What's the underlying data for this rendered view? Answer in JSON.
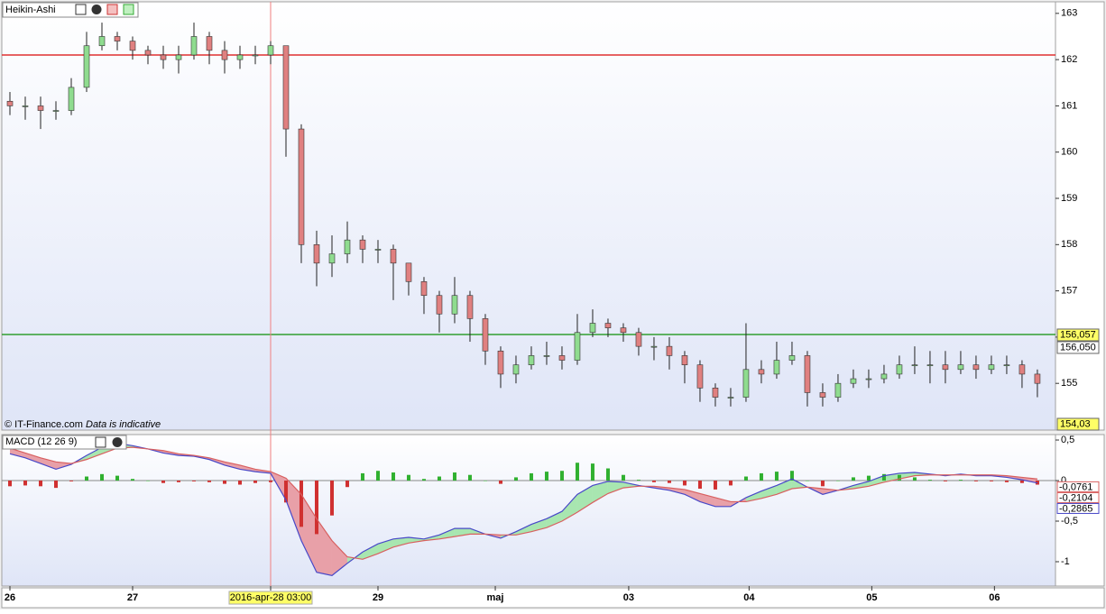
{
  "chart_data": [
    {
      "type": "candlestick",
      "title": "Heikin-Ashi",
      "copyright": "© IT-Finance.com",
      "note": "Data is indicative",
      "up_color": "#8fdc8f",
      "down_color": "#e08080",
      "open": [
        161.1,
        161.0,
        161.0,
        160.9,
        160.9,
        161.4,
        162.3,
        162.5,
        162.4,
        162.2,
        162.1,
        162.0,
        162.1,
        162.5,
        162.2,
        162.0,
        162.1,
        162.1,
        162.3,
        160.5,
        158.0,
        157.6,
        157.8,
        158.1,
        157.9,
        157.9,
        157.6,
        157.2,
        156.9,
        156.5,
        156.9,
        156.4,
        155.7,
        155.2,
        155.4,
        155.6,
        155.6,
        155.5,
        156.1,
        156.3,
        156.2,
        156.1,
        155.8,
        155.8,
        155.6,
        155.4,
        154.9,
        154.7,
        154.7,
        155.3,
        155.2,
        155.5,
        155.6,
        154.8,
        154.7,
        155.0,
        155.1,
        155.1,
        155.2,
        155.4,
        155.4,
        155.4,
        155.3,
        155.4,
        155.3,
        155.4,
        155.4,
        155.2
      ],
      "high": [
        161.3,
        161.2,
        161.2,
        161.1,
        161.6,
        162.6,
        162.8,
        162.6,
        162.5,
        162.3,
        162.3,
        162.3,
        162.8,
        162.6,
        162.4,
        162.3,
        162.3,
        162.4,
        162.3,
        160.6,
        158.3,
        158.2,
        158.5,
        158.2,
        158.1,
        158.0,
        157.6,
        157.3,
        157.0,
        157.3,
        157.0,
        156.5,
        155.8,
        155.6,
        155.8,
        155.9,
        155.8,
        156.5,
        156.6,
        156.4,
        156.3,
        156.2,
        156.0,
        156.0,
        155.7,
        155.5,
        155.0,
        154.9,
        156.3,
        155.5,
        155.9,
        155.9,
        155.7,
        155.0,
        155.2,
        155.3,
        155.3,
        155.4,
        155.6,
        155.8,
        155.7,
        155.7,
        155.7,
        155.6,
        155.6,
        155.6,
        155.5,
        155.3
      ],
      "low": [
        160.8,
        160.7,
        160.5,
        160.7,
        160.8,
        161.3,
        162.2,
        162.2,
        162.0,
        161.9,
        161.8,
        161.7,
        162.0,
        161.9,
        161.7,
        161.8,
        161.9,
        161.9,
        159.9,
        157.6,
        157.1,
        157.3,
        157.6,
        157.6,
        157.6,
        156.8,
        156.9,
        156.5,
        156.1,
        156.3,
        155.9,
        155.4,
        154.9,
        155.0,
        155.3,
        155.4,
        155.3,
        155.4,
        156.0,
        156.0,
        155.9,
        155.6,
        155.5,
        155.3,
        155.0,
        154.6,
        154.5,
        154.5,
        154.6,
        155.0,
        155.1,
        155.4,
        154.5,
        154.5,
        154.6,
        154.9,
        154.9,
        155.0,
        155.1,
        155.2,
        155.0,
        155.0,
        155.2,
        155.1,
        155.2,
        155.2,
        154.9,
        154.7
      ],
      "close": [
        161.0,
        161.0,
        160.9,
        160.9,
        161.4,
        162.3,
        162.5,
        162.4,
        162.2,
        162.1,
        162.0,
        162.1,
        162.5,
        162.2,
        162.0,
        162.1,
        162.1,
        162.3,
        160.5,
        158.0,
        157.6,
        157.8,
        158.1,
        157.9,
        157.9,
        157.6,
        157.2,
        156.9,
        156.5,
        156.9,
        156.4,
        155.7,
        155.2,
        155.4,
        155.6,
        155.6,
        155.5,
        156.1,
        156.3,
        156.2,
        156.1,
        155.8,
        155.8,
        155.6,
        155.4,
        154.9,
        154.7,
        154.7,
        155.3,
        155.2,
        155.5,
        155.6,
        154.8,
        154.7,
        155.0,
        155.1,
        155.1,
        155.2,
        155.4,
        155.4,
        155.4,
        155.3,
        155.4,
        155.3,
        155.4,
        155.4,
        155.2,
        155.0
      ],
      "ylim": [
        153.99,
        163.25
      ],
      "yticks": [
        155,
        156,
        157,
        158,
        159,
        160,
        161,
        162,
        163
      ],
      "hlines": [
        {
          "value": 162.1,
          "color": "#e03030"
        },
        {
          "value": 156.057,
          "color": "#30a030"
        }
      ],
      "price_labels": [
        {
          "value": 156.057,
          "label": "156,057",
          "background": "#ffff66"
        },
        {
          "value": 156.05,
          "label": "156,050",
          "background": "#ffffff"
        },
        {
          "value": 154.03,
          "label": "154,03",
          "background": "#ffff66"
        }
      ],
      "crosshair_x": 17
    },
    {
      "type": "macd",
      "title": "MACD (12 26 9)",
      "lines": [
        {
          "color": "#4848c8",
          "values": [
            0.33,
            0.28,
            0.21,
            0.14,
            0.2,
            0.31,
            0.41,
            0.46,
            0.43,
            0.39,
            0.34,
            0.31,
            0.3,
            0.26,
            0.19,
            0.14,
            0.11,
            0.09,
            -0.24,
            -0.74,
            -1.13,
            -1.17,
            -1.02,
            -0.88,
            -0.78,
            -0.72,
            -0.7,
            -0.72,
            -0.67,
            -0.59,
            -0.59,
            -0.66,
            -0.71,
            -0.63,
            -0.54,
            -0.47,
            -0.38,
            -0.17,
            -0.06,
            -0.01,
            -0.02,
            -0.06,
            -0.09,
            -0.12,
            -0.17,
            -0.26,
            -0.32,
            -0.32,
            -0.21,
            -0.13,
            -0.06,
            0.02,
            -0.08,
            -0.17,
            -0.12,
            -0.06,
            -0.01,
            0.06,
            0.09,
            0.1,
            0.08,
            0.06,
            0.08,
            0.06,
            0.06,
            0.04,
            0.01,
            -0.03
          ]
        },
        {
          "color": "#d86060",
          "values": [
            0.4,
            0.34,
            0.28,
            0.23,
            0.21,
            0.26,
            0.33,
            0.4,
            0.41,
            0.39,
            0.37,
            0.33,
            0.31,
            0.28,
            0.23,
            0.19,
            0.14,
            0.11,
            0.03,
            -0.17,
            -0.47,
            -0.74,
            -0.94,
            -0.97,
            -0.9,
            -0.82,
            -0.77,
            -0.74,
            -0.72,
            -0.69,
            -0.66,
            -0.66,
            -0.67,
            -0.67,
            -0.63,
            -0.58,
            -0.5,
            -0.39,
            -0.27,
            -0.16,
            -0.09,
            -0.07,
            -0.07,
            -0.09,
            -0.11,
            -0.16,
            -0.21,
            -0.26,
            -0.26,
            -0.22,
            -0.17,
            -0.1,
            -0.08,
            -0.1,
            -0.12,
            -0.1,
            -0.07,
            -0.02,
            0.02,
            0.06,
            0.07,
            0.07,
            0.07,
            0.07,
            0.07,
            0.06,
            0.04,
            0.02
          ]
        }
      ],
      "histogram": [
        -0.07,
        -0.06,
        -0.07,
        -0.09,
        -0.01,
        0.05,
        0.08,
        0.06,
        0.02,
        0,
        -0.03,
        -0.02,
        -0.01,
        -0.02,
        -0.04,
        -0.05,
        -0.03,
        -0.02,
        -0.27,
        -0.57,
        -0.66,
        -0.43,
        -0.08,
        0.09,
        0.12,
        0.1,
        0.07,
        0.02,
        0.05,
        0.1,
        0.07,
        0,
        -0.04,
        0.04,
        0.09,
        0.11,
        0.12,
        0.22,
        0.21,
        0.15,
        0.07,
        0.01,
        -0.02,
        -0.03,
        -0.06,
        -0.1,
        -0.11,
        -0.06,
        0.05,
        0.09,
        0.11,
        0.12,
        0,
        -0.07,
        0,
        0.04,
        0.06,
        0.08,
        0.07,
        0.04,
        0.01,
        -0.01,
        0.01,
        -0.01,
        -0.01,
        -0.02,
        -0.03,
        -0.05
      ],
      "up_color": "#30b030",
      "down_color": "#d03030",
      "ylim": [
        -1.3,
        0.567
      ],
      "yticks": [
        {
          "value": 0.5,
          "label": "0,5"
        },
        0,
        {
          "value": -0.5,
          "label": "-0,5"
        },
        -1
      ],
      "last_values": [
        {
          "value": -0.0761,
          "label": "-0,0761",
          "color": "#d86060"
        },
        {
          "value": -0.2104,
          "label": "-0,2104",
          "color": "#d86060"
        },
        {
          "value": -0.2865,
          "label": "-0,2865",
          "color": "#4848c8"
        }
      ],
      "xlim": [
        -0.53,
        68.18
      ],
      "xticks": [
        {
          "value": 0,
          "label": "26"
        },
        {
          "value": 8,
          "label": "27"
        },
        {
          "value": 17,
          "label": "2016-apr-28 03:00",
          "highlight": true
        },
        {
          "value": 24,
          "label": "29"
        },
        {
          "value": 31.65,
          "label": "maj"
        },
        {
          "value": 40.35,
          "label": "03"
        },
        {
          "value": 48.2,
          "label": "04"
        },
        {
          "value": 56.2,
          "label": "05"
        },
        {
          "value": 64.2,
          "label": "06"
        }
      ]
    }
  ]
}
